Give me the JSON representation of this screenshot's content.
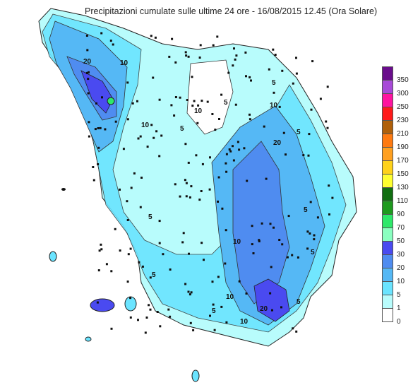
{
  "title": "Precipitazioni cumulate sulle ultime 24 ore - 16/08/2015 12.45 (Ora Solare)",
  "legend": {
    "classes": [
      {
        "label": "350",
        "color": "#6a0d8c"
      },
      {
        "label": "300",
        "color": "#a84ad8"
      },
      {
        "label": "250",
        "color": "#ff14a0"
      },
      {
        "label": "230",
        "color": "#ff1a1a"
      },
      {
        "label": "210",
        "color": "#b0600a"
      },
      {
        "label": "190",
        "color": "#ff7a10"
      },
      {
        "label": "170",
        "color": "#ffa020"
      },
      {
        "label": "150",
        "color": "#ffd21a"
      },
      {
        "label": "130",
        "color": "#ffff30"
      },
      {
        "label": "110",
        "color": "#116f11"
      },
      {
        "label": "90",
        "color": "#1e9a1e"
      },
      {
        "label": "70",
        "color": "#2ee86a"
      },
      {
        "label": "50",
        "color": "#8affc0"
      },
      {
        "label": "30",
        "color": "#4a4af0"
      },
      {
        "label": "20",
        "color": "#4f8cf0"
      },
      {
        "label": "10",
        "color": "#55b8f5"
      },
      {
        "label": "5",
        "color": "#6ae4ff"
      },
      {
        "label": "1",
        "color": "#b8fcfc"
      },
      {
        "label": "0",
        "color": "#ffffff"
      }
    ]
  },
  "map_labels": [
    "10",
    "20",
    "5",
    "5",
    "10",
    "5",
    "20",
    "5",
    "5",
    "10",
    "5",
    "5",
    "10",
    "5",
    "20",
    "10",
    "5",
    "10",
    "5",
    "10"
  ]
}
